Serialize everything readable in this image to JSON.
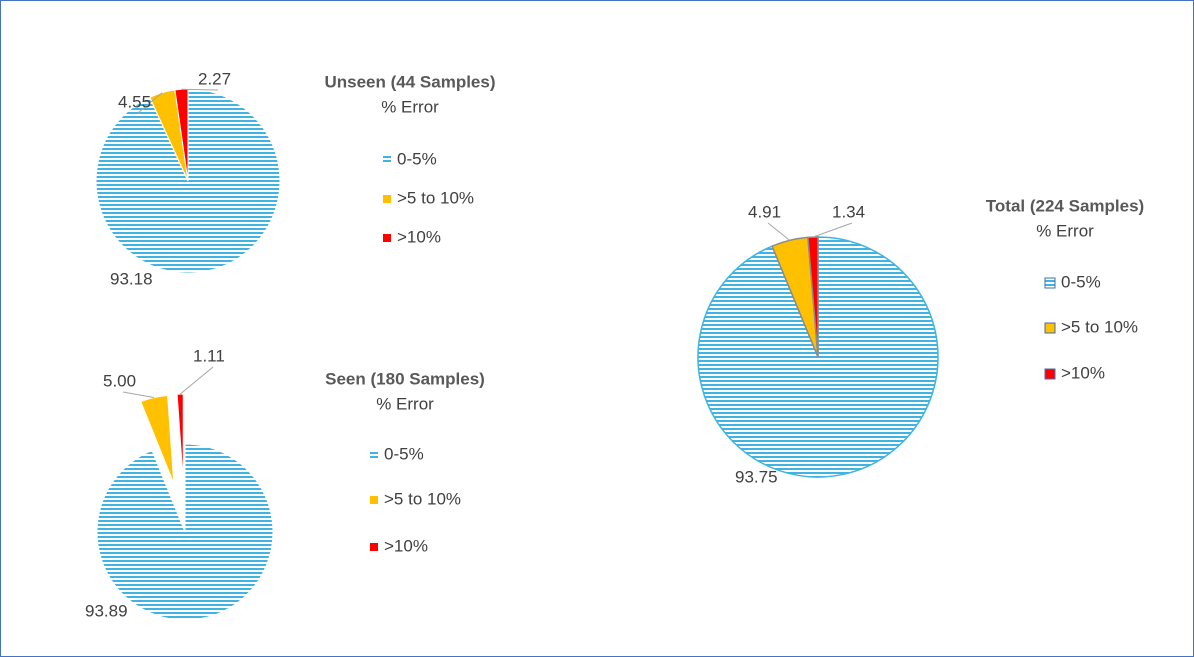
{
  "chart_data": [
    {
      "type": "pie",
      "title": "Unseen (44 Samples)",
      "subtitle": "% Error",
      "categories": [
        "0-5%",
        ">5 to 10%",
        ">10%"
      ],
      "values": [
        93.18,
        4.55,
        2.27
      ],
      "colors": [
        "#3fb4e3",
        "#ffc000",
        "#ff0000"
      ],
      "striped": true
    },
    {
      "type": "pie",
      "title": "Seen (180 Samples)",
      "subtitle": "% Error",
      "categories": [
        "0-5%",
        ">5 to 10%",
        ">10%"
      ],
      "values": [
        93.89,
        5.0,
        1.11
      ],
      "value_labels": [
        "93.89",
        "5.00",
        "1.11"
      ],
      "colors": [
        "#3fb4e3",
        "#ffc000",
        "#ff0000"
      ],
      "striped": true,
      "exploded": true
    },
    {
      "type": "pie",
      "title": "Total (224 Samples)",
      "subtitle": "% Error",
      "categories": [
        "0-5%",
        ">5 to 10%",
        ">10%"
      ],
      "values": [
        93.75,
        4.91,
        1.34
      ],
      "colors": [
        "#3fb4e3",
        "#ffc000",
        "#ff0000"
      ],
      "striped": true,
      "outlined": true
    }
  ]
}
